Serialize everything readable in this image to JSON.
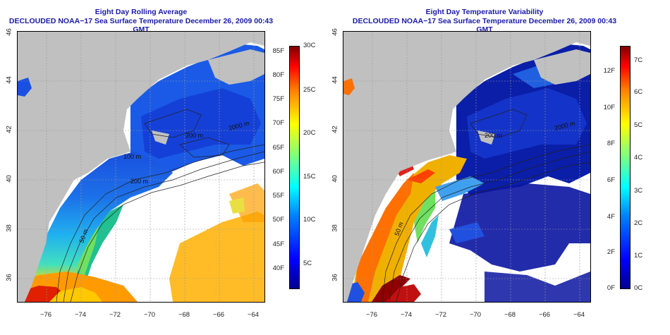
{
  "panels": [
    {
      "title_line1": "Eight Day Rolling Average",
      "title_line2": "DECLOUDED NOAA−17 Sea Surface Temperature December 26, 2009 00:43 GMT",
      "x_ticks": [
        "−76",
        "−74",
        "−72",
        "−70",
        "−68",
        "−66",
        "−64"
      ],
      "y_ticks": [
        "36",
        "38",
        "40",
        "42",
        "44",
        "46"
      ],
      "contour_labels": [
        "50 m",
        "200 m",
        "100 m",
        "2000 m",
        "200 m"
      ],
      "colorbar": {
        "left_labels": [
          "85F",
          "80F",
          "75F",
          "70F",
          "65F",
          "60F",
          "55F",
          "50F",
          "45F",
          "40F"
        ],
        "right_labels": [
          "30C",
          "25C",
          "20C",
          "15C",
          "10C",
          "5C"
        ]
      },
      "colormap": "jet",
      "land_color": "#c0c0c0",
      "no_data_color": "#ffffff"
    },
    {
      "title_line1": "Eight Day Temperature Variability",
      "title_line2": "DECLOUDED NOAA−17 Sea Surface Temperature December 26, 2009 00:43 GMT",
      "x_ticks": [
        "−76",
        "−74",
        "−72",
        "−70",
        "−68",
        "−66",
        "−64"
      ],
      "y_ticks": [
        "36",
        "38",
        "40",
        "42",
        "44",
        "46"
      ],
      "contour_labels": [
        "50 m",
        "2000 m",
        "200 m"
      ],
      "colorbar": {
        "left_labels": [
          "12F",
          "10F",
          "8F",
          "6F",
          "4F",
          "2F",
          "0F"
        ],
        "right_labels": [
          "7C",
          "6C",
          "5C",
          "4C",
          "3C",
          "2C",
          "1C",
          "0C"
        ]
      },
      "colormap": "jet",
      "land_color": "#c0c0c0",
      "no_data_color": "#ffffff"
    }
  ]
}
